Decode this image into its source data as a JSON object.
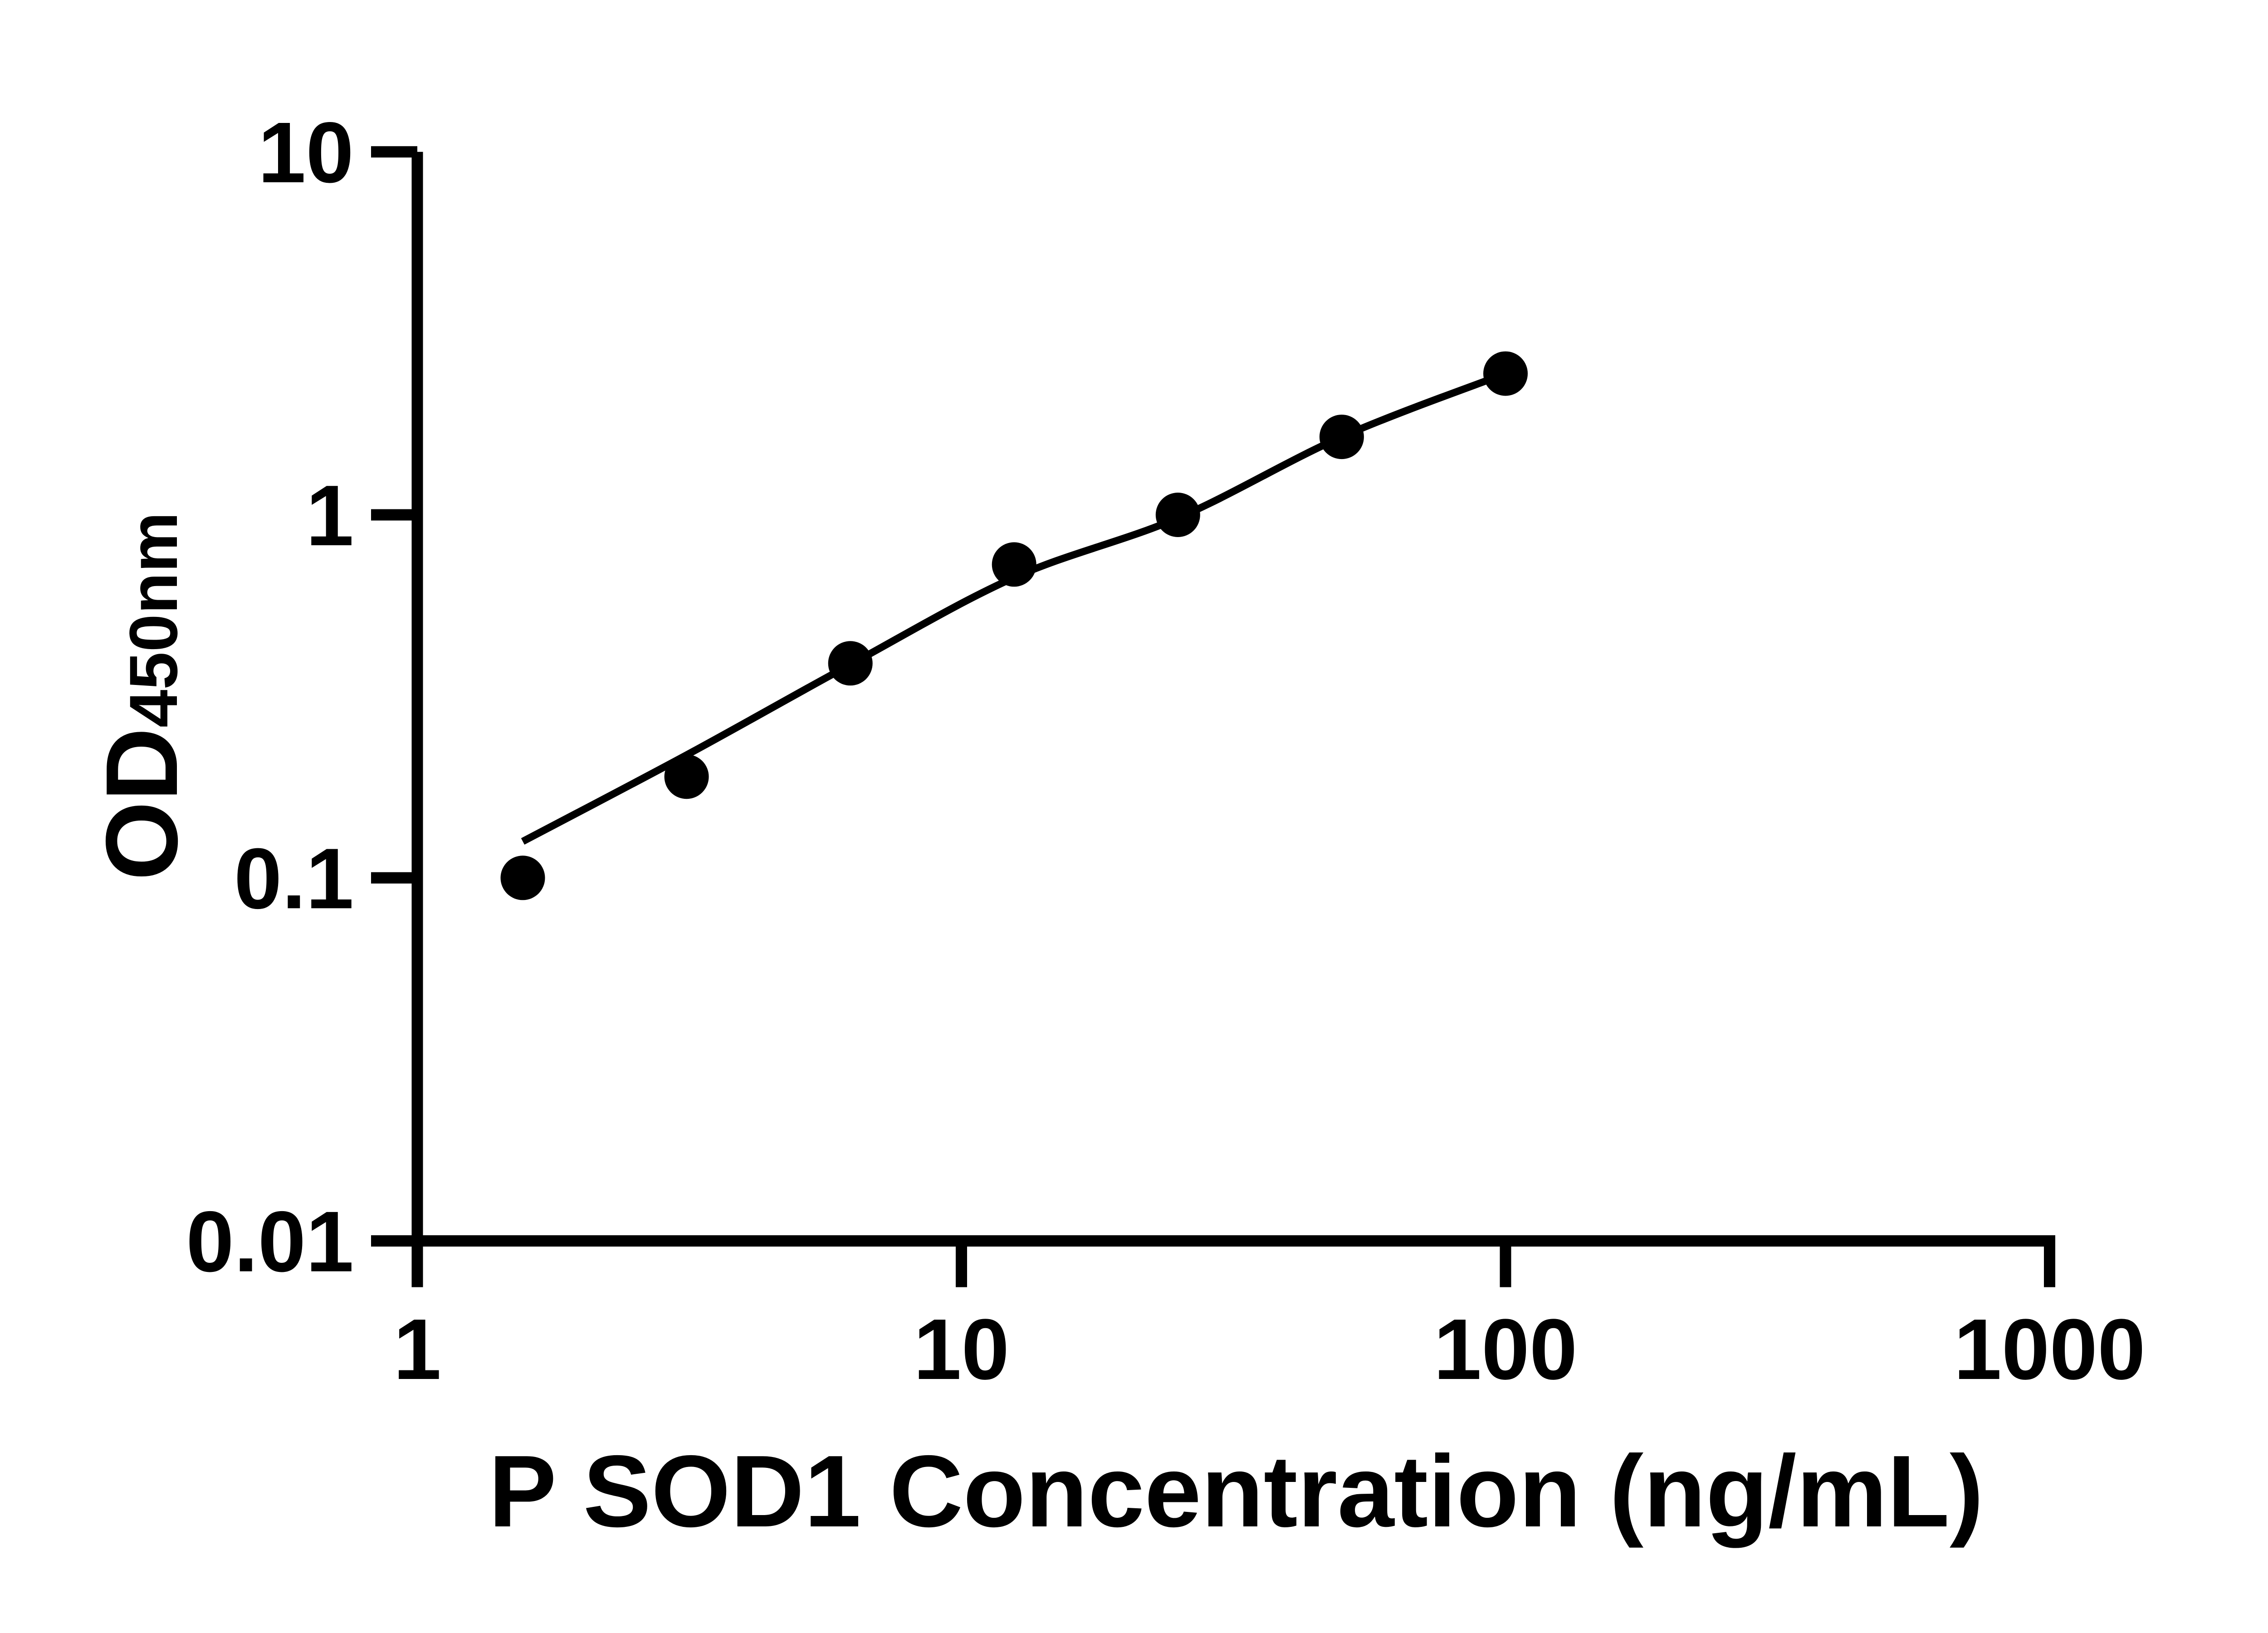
{
  "figure": {
    "background_color": "#ffffff",
    "ink_color": "#000000"
  },
  "chart_data": {
    "type": "scatter",
    "title": "",
    "xlabel": "P SOD1 Concentration (ng/mL)",
    "ylabel": "OD450nm",
    "ylabel_parts": {
      "main": "OD",
      "subscript": "450nm"
    },
    "x_scale": "log10",
    "y_scale": "log10",
    "xlim": [
      1,
      1000
    ],
    "ylim": [
      0.01,
      10
    ],
    "x_tick_labels": [
      "1",
      "10",
      "100",
      "1000"
    ],
    "y_tick_labels": [
      "10",
      "1",
      "0.1",
      "0.01"
    ],
    "grid": false,
    "legend_position": "none",
    "marker": {
      "shape": "circle",
      "color": "#000000"
    },
    "colors": {
      "points": "#000000",
      "curve": "#000000",
      "axis": "#000000"
    },
    "series": [
      {
        "name": "standard-points",
        "type": "scatter",
        "x": [
          1.5625,
          3.125,
          6.25,
          12.5,
          25,
          50,
          100
        ],
        "y": [
          0.1,
          0.19,
          0.39,
          0.73,
          1.0,
          1.64,
          2.45
        ]
      },
      {
        "name": "fitted-curve",
        "type": "line",
        "x": [
          1.5625,
          3.125,
          6.25,
          12.5,
          25,
          50,
          100
        ],
        "y": [
          0.126,
          0.218,
          0.387,
          0.672,
          0.98,
          1.64,
          2.45
        ]
      }
    ]
  }
}
